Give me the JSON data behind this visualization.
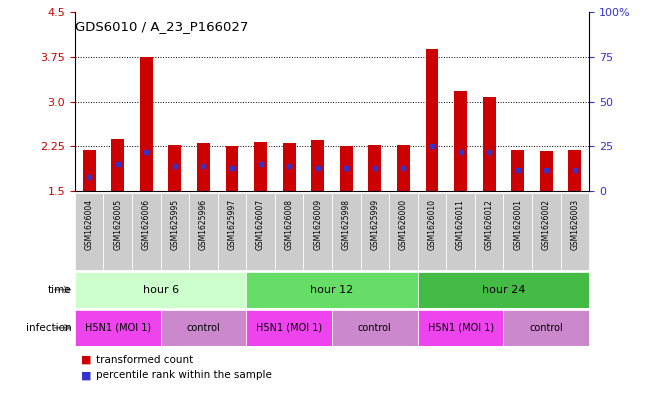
{
  "title": "GDS6010 / A_23_P166027",
  "samples": [
    "GSM1626004",
    "GSM1626005",
    "GSM1626006",
    "GSM1625995",
    "GSM1625996",
    "GSM1625997",
    "GSM1626007",
    "GSM1626008",
    "GSM1626009",
    "GSM1625998",
    "GSM1625999",
    "GSM1626000",
    "GSM1626010",
    "GSM1626011",
    "GSM1626012",
    "GSM1626001",
    "GSM1626002",
    "GSM1626003"
  ],
  "transformed_count": [
    2.18,
    2.38,
    3.75,
    2.28,
    2.3,
    2.25,
    2.33,
    2.31,
    2.36,
    2.25,
    2.27,
    2.28,
    3.88,
    3.17,
    3.07,
    2.18,
    2.17,
    2.18
  ],
  "percentile_rank": [
    8,
    15,
    22,
    14,
    14,
    13,
    15,
    14,
    13,
    13,
    13,
    13,
    25,
    22,
    22,
    12,
    12,
    12
  ],
  "ylim_left": [
    1.5,
    4.5
  ],
  "ylim_right": [
    0,
    100
  ],
  "yticks_left": [
    1.5,
    2.25,
    3.0,
    3.75,
    4.5
  ],
  "yticks_right": [
    0,
    25,
    50,
    75,
    100
  ],
  "bar_color": "#cc0000",
  "dot_color": "#3333cc",
  "bar_bottom": 1.5,
  "sample_box_color": "#cccccc",
  "time_groups": [
    {
      "label": "hour 6",
      "start": 0,
      "end": 6,
      "color": "#ccffcc"
    },
    {
      "label": "hour 12",
      "start": 6,
      "end": 12,
      "color": "#66dd66"
    },
    {
      "label": "hour 24",
      "start": 12,
      "end": 18,
      "color": "#44bb44"
    }
  ],
  "infection_groups": [
    {
      "label": "H5N1 (MOI 1)",
      "start": 0,
      "end": 3,
      "color": "#ee44ee"
    },
    {
      "label": "control",
      "start": 3,
      "end": 6,
      "color": "#cc88cc"
    },
    {
      "label": "H5N1 (MOI 1)",
      "start": 6,
      "end": 9,
      "color": "#ee44ee"
    },
    {
      "label": "control",
      "start": 9,
      "end": 12,
      "color": "#cc88cc"
    },
    {
      "label": "H5N1 (MOI 1)",
      "start": 12,
      "end": 15,
      "color": "#ee44ee"
    },
    {
      "label": "control",
      "start": 15,
      "end": 18,
      "color": "#cc88cc"
    }
  ],
  "legend_items": [
    {
      "label": "transformed count",
      "color": "#cc0000"
    },
    {
      "label": "percentile rank within the sample",
      "color": "#3333cc"
    }
  ]
}
